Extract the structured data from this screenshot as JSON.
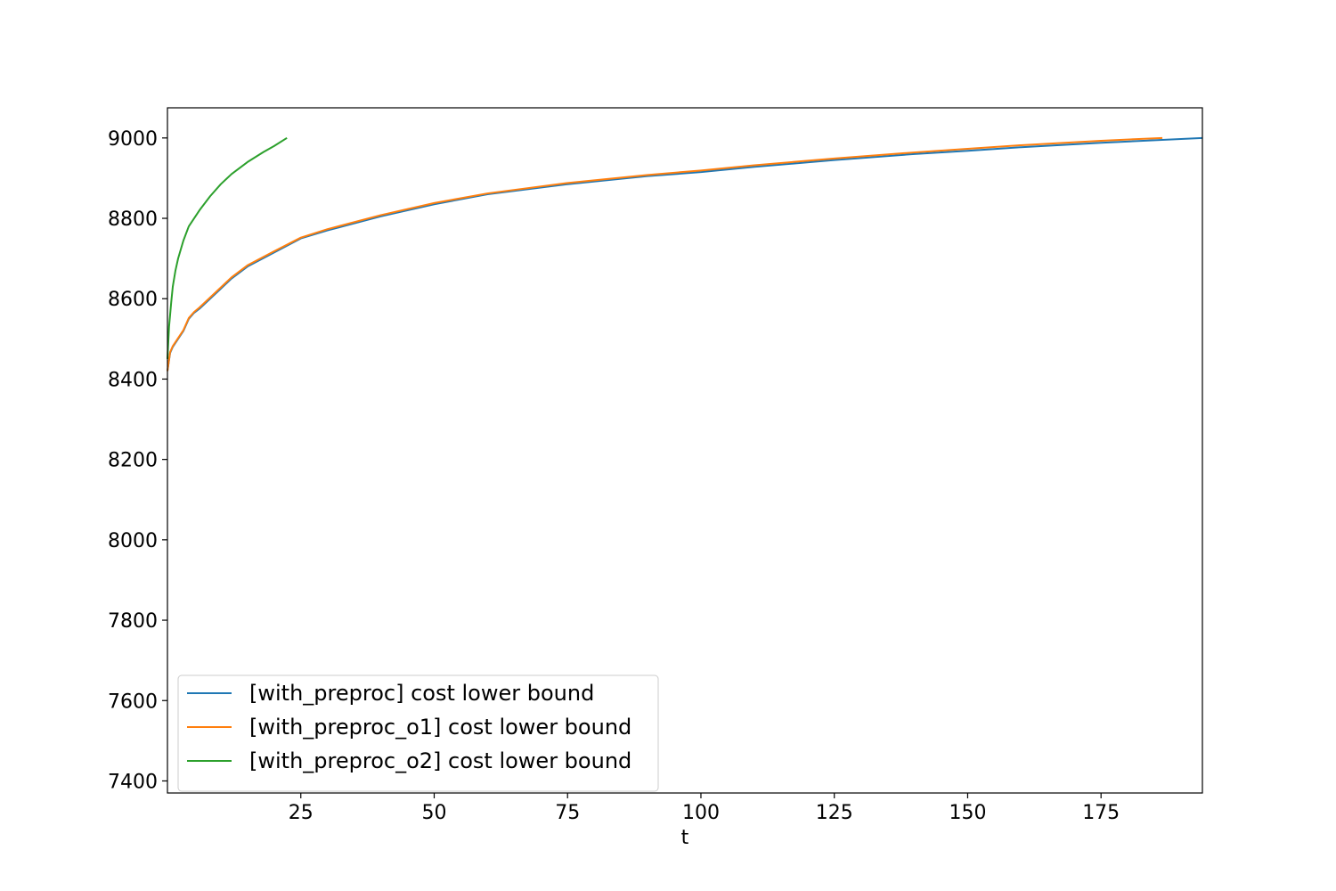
{
  "chart_data": {
    "type": "line",
    "title": "",
    "xlabel": "t",
    "ylabel": "",
    "xlim": [
      0,
      194
    ],
    "ylim": [
      7370,
      9075
    ],
    "xticks": [
      25,
      50,
      75,
      100,
      125,
      150,
      175
    ],
    "yticks": [
      7400,
      7600,
      7800,
      8000,
      8200,
      8400,
      8600,
      8800,
      9000
    ],
    "grid": false,
    "legend_position": "lower-left",
    "series": [
      {
        "name": "[with_preproc] cost lower bound",
        "color": "#1f77b4",
        "x": [
          0,
          0.5,
          1,
          2,
          3,
          4,
          5,
          6,
          8,
          10,
          12,
          15,
          20,
          25,
          30,
          40,
          50,
          60,
          75,
          90,
          100,
          110,
          125,
          140,
          150,
          160,
          175,
          194
        ],
        "y": [
          8420,
          8465,
          8480,
          8500,
          8520,
          8550,
          8565,
          8575,
          8600,
          8625,
          8650,
          8680,
          8715,
          8750,
          8770,
          8805,
          8835,
          8860,
          8885,
          8905,
          8915,
          8928,
          8945,
          8960,
          8968,
          8977,
          8988,
          9000
        ]
      },
      {
        "name": "[with_preproc_o1] cost lower bound",
        "color": "#ff7f0e",
        "x": [
          0,
          0.5,
          1,
          2,
          3,
          4,
          5,
          6,
          8,
          10,
          12,
          15,
          20,
          25,
          30,
          40,
          50,
          60,
          75,
          90,
          100,
          110,
          125,
          140,
          150,
          160,
          175,
          186.5
        ],
        "y": [
          8420,
          8467,
          8482,
          8502,
          8522,
          8552,
          8567,
          8578,
          8603,
          8628,
          8653,
          8683,
          8718,
          8752,
          8773,
          8808,
          8838,
          8862,
          8888,
          8908,
          8919,
          8932,
          8949,
          8964,
          8973,
          8982,
          8993,
          9000
        ]
      },
      {
        "name": "[with_preproc_o2] cost lower bound",
        "color": "#2ca02c",
        "x": [
          0,
          0.3,
          0.7,
          1,
          1.5,
          2,
          3,
          4,
          5,
          6,
          8,
          10,
          12,
          15,
          18,
          20,
          22.4
        ],
        "y": [
          8450,
          8530,
          8590,
          8630,
          8670,
          8700,
          8745,
          8780,
          8800,
          8820,
          8855,
          8885,
          8910,
          8940,
          8965,
          8980,
          9000
        ]
      }
    ]
  }
}
